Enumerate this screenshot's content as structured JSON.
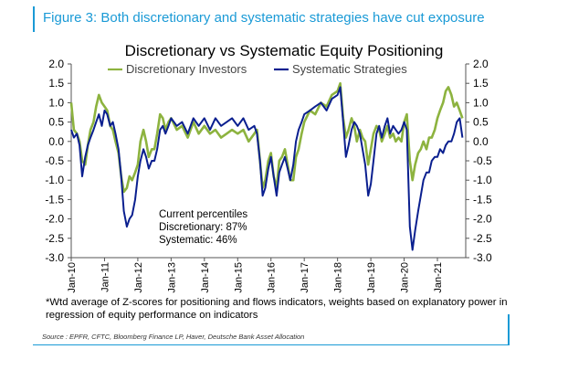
{
  "figure_title": "Figure 3: Both discretionary and systematic strategies have cut exposure",
  "chart_data": {
    "type": "line",
    "title": "Discretionary  vs Systematic Equity Positioning",
    "xlabel": "",
    "ylabel": "",
    "ylim": [
      -3.0,
      2.0
    ],
    "yticks": [
      "2.0",
      "1.5",
      "1.0",
      "0.5",
      "0.0",
      "-0.5",
      "-1.0",
      "-1.5",
      "-2.0",
      "-2.5",
      "-3.0"
    ],
    "xticks": [
      "Jan-10",
      "Jan-11",
      "Jan-12",
      "Jan-13",
      "Jan-14",
      "Jan-15",
      "Jan-16",
      "Jan-17",
      "Jan-18",
      "Jan-19",
      "Jan-20",
      "Jan-21"
    ],
    "xrange": [
      2010.0,
      2021.85
    ],
    "legend_position": "top",
    "grid": false,
    "series": [
      {
        "name": "Discretionary Investors",
        "color": "#8db33f",
        "x": [
          2010.0,
          2010.08,
          2010.17,
          2010.25,
          2010.33,
          2010.42,
          2010.5,
          2010.58,
          2010.67,
          2010.75,
          2010.83,
          2010.92,
          2011.0,
          2011.08,
          2011.17,
          2011.25,
          2011.33,
          2011.42,
          2011.5,
          2011.58,
          2011.67,
          2011.75,
          2011.83,
          2011.92,
          2012.0,
          2012.08,
          2012.17,
          2012.25,
          2012.33,
          2012.42,
          2012.5,
          2012.58,
          2012.67,
          2012.75,
          2012.83,
          2012.92,
          2013.0,
          2013.17,
          2013.33,
          2013.5,
          2013.67,
          2013.83,
          2014.0,
          2014.17,
          2014.33,
          2014.5,
          2014.67,
          2014.83,
          2015.0,
          2015.17,
          2015.33,
          2015.5,
          2015.58,
          2015.67,
          2015.75,
          2015.83,
          2015.92,
          2016.0,
          2016.08,
          2016.17,
          2016.25,
          2016.33,
          2016.42,
          2016.5,
          2016.58,
          2016.67,
          2016.75,
          2016.83,
          2016.92,
          2017.0,
          2017.17,
          2017.33,
          2017.5,
          2017.67,
          2017.83,
          2018.0,
          2018.08,
          2018.17,
          2018.25,
          2018.33,
          2018.42,
          2018.5,
          2018.58,
          2018.67,
          2018.75,
          2018.83,
          2018.92,
          2019.0,
          2019.08,
          2019.17,
          2019.25,
          2019.33,
          2019.42,
          2019.5,
          2019.58,
          2019.67,
          2019.75,
          2019.83,
          2019.92,
          2020.0,
          2020.08,
          2020.17,
          2020.25,
          2020.33,
          2020.42,
          2020.5,
          2020.58,
          2020.67,
          2020.75,
          2020.83,
          2020.92,
          2021.0,
          2021.08,
          2021.17,
          2021.25,
          2021.33,
          2021.42,
          2021.5,
          2021.58,
          2021.67,
          2021.75
        ],
        "values": [
          1.0,
          0.3,
          0.2,
          0.0,
          -0.5,
          -0.6,
          -0.1,
          0.3,
          0.5,
          0.9,
          1.2,
          1.0,
          0.9,
          0.8,
          0.4,
          0.3,
          0.0,
          -0.3,
          -0.9,
          -1.3,
          -1.2,
          -0.9,
          -1.0,
          -0.8,
          -0.6,
          0.0,
          0.3,
          0.0,
          -0.4,
          -0.2,
          -0.2,
          0.2,
          0.7,
          0.6,
          0.3,
          0.5,
          0.6,
          0.3,
          0.4,
          0.1,
          0.5,
          0.2,
          0.4,
          0.2,
          0.3,
          0.1,
          0.2,
          0.3,
          0.2,
          0.3,
          0.0,
          0.2,
          0.3,
          -0.5,
          -1.2,
          -1.0,
          -0.5,
          -0.3,
          -0.9,
          -1.2,
          -0.5,
          -0.4,
          -0.2,
          -0.6,
          -1.0,
          -1.0,
          -0.4,
          -0.2,
          0.2,
          0.5,
          0.8,
          0.7,
          1.0,
          0.9,
          1.2,
          1.3,
          1.5,
          0.6,
          0.1,
          0.3,
          0.6,
          0.4,
          0.0,
          0.3,
          0.1,
          0.0,
          -0.6,
          -0.2,
          0.2,
          0.4,
          0.3,
          0.0,
          0.2,
          0.4,
          0.1,
          0.2,
          0.0,
          0.1,
          0.0,
          0.5,
          0.7,
          -0.5,
          -1.0,
          -0.6,
          -0.3,
          -0.2,
          0.0,
          -0.2,
          0.1,
          0.1,
          0.3,
          0.6,
          0.8,
          1.0,
          1.3,
          1.4,
          1.2,
          0.9,
          1.0,
          0.8,
          0.6
        ]
      },
      {
        "name": "Systematic Strategies",
        "color": "#0a1f8f",
        "x": [
          2010.0,
          2010.08,
          2010.17,
          2010.25,
          2010.33,
          2010.42,
          2010.5,
          2010.58,
          2010.67,
          2010.75,
          2010.83,
          2010.92,
          2011.0,
          2011.08,
          2011.17,
          2011.25,
          2011.33,
          2011.42,
          2011.5,
          2011.58,
          2011.67,
          2011.75,
          2011.83,
          2011.92,
          2012.0,
          2012.08,
          2012.17,
          2012.25,
          2012.33,
          2012.42,
          2012.5,
          2012.58,
          2012.67,
          2012.75,
          2012.83,
          2012.92,
          2013.0,
          2013.17,
          2013.33,
          2013.5,
          2013.67,
          2013.83,
          2014.0,
          2014.17,
          2014.33,
          2014.5,
          2014.67,
          2014.83,
          2015.0,
          2015.17,
          2015.33,
          2015.5,
          2015.58,
          2015.67,
          2015.75,
          2015.83,
          2015.92,
          2016.0,
          2016.08,
          2016.17,
          2016.25,
          2016.33,
          2016.42,
          2016.5,
          2016.58,
          2016.67,
          2016.75,
          2016.83,
          2016.92,
          2017.0,
          2017.17,
          2017.33,
          2017.5,
          2017.67,
          2017.83,
          2018.0,
          2018.08,
          2018.17,
          2018.25,
          2018.33,
          2018.42,
          2018.5,
          2018.58,
          2018.67,
          2018.75,
          2018.83,
          2018.92,
          2019.0,
          2019.08,
          2019.17,
          2019.25,
          2019.33,
          2019.42,
          2019.5,
          2019.58,
          2019.67,
          2019.75,
          2019.83,
          2019.92,
          2020.0,
          2020.08,
          2020.17,
          2020.25,
          2020.33,
          2020.42,
          2020.5,
          2020.58,
          2020.67,
          2020.75,
          2020.83,
          2020.92,
          2021.0,
          2021.08,
          2021.17,
          2021.25,
          2021.33,
          2021.42,
          2021.5,
          2021.58,
          2021.67,
          2021.75
        ],
        "values": [
          0.3,
          0.1,
          0.2,
          -0.1,
          -0.9,
          -0.4,
          -0.1,
          0.1,
          0.3,
          0.5,
          0.7,
          0.4,
          0.8,
          0.7,
          0.4,
          0.5,
          0.2,
          -0.2,
          -0.9,
          -1.8,
          -2.2,
          -2.0,
          -1.9,
          -1.5,
          -0.9,
          -0.5,
          -0.2,
          -0.4,
          -0.7,
          -0.5,
          -0.5,
          -0.2,
          0.3,
          0.4,
          0.2,
          0.4,
          0.6,
          0.4,
          0.5,
          0.2,
          0.6,
          0.4,
          0.6,
          0.3,
          0.6,
          0.4,
          0.5,
          0.6,
          0.4,
          0.6,
          0.3,
          0.4,
          0.2,
          -0.5,
          -1.4,
          -1.2,
          -0.7,
          -0.4,
          -0.9,
          -1.4,
          -0.8,
          -0.6,
          -0.4,
          -0.7,
          -1.0,
          -0.6,
          0.0,
          0.3,
          0.5,
          0.7,
          0.8,
          0.9,
          1.0,
          0.8,
          1.1,
          1.2,
          1.4,
          0.5,
          -0.4,
          -0.1,
          0.3,
          0.5,
          0.4,
          0.2,
          -0.2,
          -0.6,
          -1.4,
          -1.1,
          -0.5,
          0.2,
          0.4,
          0.1,
          0.4,
          0.6,
          0.2,
          0.4,
          0.3,
          0.2,
          0.3,
          0.5,
          0.3,
          -2.2,
          -2.8,
          -2.3,
          -1.8,
          -1.4,
          -1.0,
          -0.8,
          -0.8,
          -0.5,
          -0.4,
          -0.4,
          -0.2,
          -0.3,
          -0.1,
          0.0,
          0.0,
          0.2,
          0.5,
          0.6,
          0.1
        ]
      }
    ],
    "annotations": [
      "Current percentiles",
      "Discretionary: 87%",
      "Systematic: 46%"
    ]
  },
  "footnote": "*Wtd average of Z-scores for positioning and flows indicators, weights based on explanatory power in regression of equity performance on indicators",
  "source": "Source : EPFR, CFTC, Bloomberg Finance LP, Haver, Deutsche Bank Asset Allocation"
}
